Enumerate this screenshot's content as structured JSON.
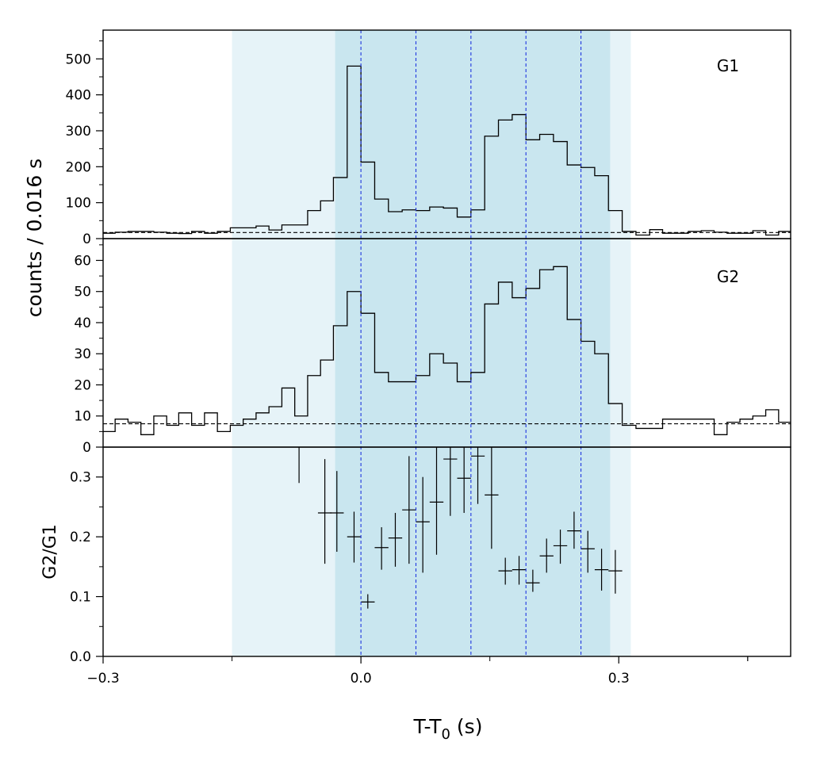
{
  "chart_data": {
    "type": "line",
    "shared_x": {
      "label_main": "T-T",
      "label_sub": "0",
      "label_tail": " (s)",
      "range": [
        -0.3,
        0.5
      ],
      "ticks": [
        -0.3,
        0.0,
        0.3
      ],
      "tick_labels": [
        "−0.3",
        "0.0",
        "0.3"
      ]
    },
    "shared_ylabel": "counts /  0.016 s",
    "background_bands": [
      {
        "x": [
          -0.15,
          0.314
        ],
        "color": "#e6f3f8"
      },
      {
        "x": [
          -0.03,
          0.29
        ],
        "color": "#c9e6ef"
      }
    ],
    "vlines": {
      "x": [
        0.0,
        0.064,
        0.128,
        0.192,
        0.256
      ],
      "color": "#1f36e0"
    },
    "panels": [
      {
        "name": "G1",
        "label": "G1",
        "ylim": [
          0,
          580
        ],
        "yticks": [
          0,
          100,
          200,
          300,
          400,
          500
        ],
        "ytick_labels": [
          "0",
          "100",
          "200",
          "300",
          "400",
          "500"
        ],
        "baseline": 17,
        "step_edges": [
          -0.3,
          -0.286,
          -0.271,
          -0.256,
          -0.241,
          -0.226,
          -0.212,
          -0.197,
          -0.182,
          -0.167,
          -0.152,
          -0.137,
          -0.122,
          -0.107,
          -0.092,
          -0.077,
          -0.062,
          -0.047,
          -0.032,
          -0.016,
          0.0,
          0.016,
          0.032,
          0.048,
          0.064,
          0.08,
          0.096,
          0.112,
          0.128,
          0.144,
          0.16,
          0.176,
          0.192,
          0.208,
          0.224,
          0.24,
          0.256,
          0.272,
          0.288,
          0.304,
          0.32,
          0.336,
          0.351,
          0.366,
          0.381,
          0.396,
          0.411,
          0.426,
          0.441,
          0.456,
          0.471,
          0.486,
          0.5
        ],
        "step_values": [
          15,
          18,
          20,
          20,
          18,
          15,
          14,
          20,
          15,
          20,
          30,
          30,
          35,
          24,
          38,
          38,
          78,
          105,
          170,
          480,
          213,
          110,
          75,
          80,
          78,
          88,
          85,
          60,
          80,
          285,
          330,
          345,
          275,
          290,
          270,
          205,
          198,
          175,
          78,
          20,
          10,
          25,
          15,
          15,
          20,
          22,
          18,
          15,
          15,
          22,
          10,
          20
        ]
      },
      {
        "name": "G2",
        "label": "G2",
        "ylim": [
          0,
          67
        ],
        "yticks": [
          0,
          10,
          20,
          30,
          40,
          50,
          60
        ],
        "ytick_labels": [
          "0",
          "10",
          "20",
          "30",
          "40",
          "50",
          "60"
        ],
        "baseline": 7.5,
        "step_edges": [
          -0.3,
          -0.286,
          -0.271,
          -0.256,
          -0.241,
          -0.226,
          -0.212,
          -0.197,
          -0.182,
          -0.167,
          -0.152,
          -0.137,
          -0.122,
          -0.107,
          -0.092,
          -0.077,
          -0.062,
          -0.047,
          -0.032,
          -0.016,
          0.0,
          0.016,
          0.032,
          0.048,
          0.064,
          0.08,
          0.096,
          0.112,
          0.128,
          0.144,
          0.16,
          0.176,
          0.192,
          0.208,
          0.224,
          0.24,
          0.256,
          0.272,
          0.288,
          0.304,
          0.32,
          0.336,
          0.351,
          0.366,
          0.381,
          0.396,
          0.411,
          0.426,
          0.441,
          0.456,
          0.471,
          0.486,
          0.5
        ],
        "step_values": [
          5,
          9,
          8,
          4,
          10,
          7,
          11,
          7,
          11,
          5,
          7,
          9,
          11,
          13,
          19,
          10,
          23,
          28,
          39,
          50,
          43,
          24,
          21,
          21,
          23,
          30,
          27,
          21,
          24,
          46,
          53,
          48,
          51,
          57,
          58,
          41,
          34,
          30,
          14,
          7,
          6,
          6,
          9,
          9,
          9,
          9,
          4,
          8,
          9,
          10,
          12,
          8
        ]
      },
      {
        "name": "G2/G1",
        "ylabel": "G2/G1",
        "ylim": [
          0,
          0.35
        ],
        "yticks": [
          0.0,
          0.1,
          0.2,
          0.3
        ],
        "ytick_labels": [
          "0.0",
          "0.1",
          "0.2",
          "0.3"
        ],
        "points": [
          {
            "x": -0.072,
            "y": 0.33,
            "ylo": 0.29,
            "yhi": 0.35,
            "xerr": 0.0
          },
          {
            "x": -0.042,
            "y": 0.24,
            "ylo": 0.155,
            "yhi": 0.33,
            "xerr": 0.008
          },
          {
            "x": -0.028,
            "y": 0.24,
            "ylo": 0.175,
            "yhi": 0.31,
            "xerr": 0.008
          },
          {
            "x": -0.008,
            "y": 0.2,
            "ylo": 0.157,
            "yhi": 0.242,
            "xerr": 0.008
          },
          {
            "x": 0.008,
            "y": 0.091,
            "ylo": 0.08,
            "yhi": 0.104,
            "xerr": 0.008
          },
          {
            "x": 0.024,
            "y": 0.182,
            "ylo": 0.145,
            "yhi": 0.216,
            "xerr": 0.008
          },
          {
            "x": 0.04,
            "y": 0.198,
            "ylo": 0.15,
            "yhi": 0.24,
            "xerr": 0.008
          },
          {
            "x": 0.056,
            "y": 0.245,
            "ylo": 0.155,
            "yhi": 0.335,
            "xerr": 0.008
          },
          {
            "x": 0.072,
            "y": 0.225,
            "ylo": 0.14,
            "yhi": 0.3,
            "xerr": 0.008
          },
          {
            "x": 0.088,
            "y": 0.258,
            "ylo": 0.17,
            "yhi": 0.35,
            "xerr": 0.008
          },
          {
            "x": 0.104,
            "y": 0.33,
            "ylo": 0.235,
            "yhi": 0.35,
            "xerr": 0.008
          },
          {
            "x": 0.12,
            "y": 0.298,
            "ylo": 0.24,
            "yhi": 0.35,
            "xerr": 0.008
          },
          {
            "x": 0.136,
            "y": 0.335,
            "ylo": 0.255,
            "yhi": 0.35,
            "xerr": 0.008
          },
          {
            "x": 0.152,
            "y": 0.27,
            "ylo": 0.18,
            "yhi": 0.35,
            "xerr": 0.008
          },
          {
            "x": 0.168,
            "y": 0.143,
            "ylo": 0.12,
            "yhi": 0.165,
            "xerr": 0.008
          },
          {
            "x": 0.184,
            "y": 0.145,
            "ylo": 0.12,
            "yhi": 0.168,
            "xerr": 0.008
          },
          {
            "x": 0.2,
            "y": 0.123,
            "ylo": 0.108,
            "yhi": 0.145,
            "xerr": 0.008
          },
          {
            "x": 0.216,
            "y": 0.168,
            "ylo": 0.14,
            "yhi": 0.197,
            "xerr": 0.008
          },
          {
            "x": 0.232,
            "y": 0.185,
            "ylo": 0.155,
            "yhi": 0.212,
            "xerr": 0.008
          },
          {
            "x": 0.248,
            "y": 0.21,
            "ylo": 0.18,
            "yhi": 0.242,
            "xerr": 0.008
          },
          {
            "x": 0.264,
            "y": 0.18,
            "ylo": 0.14,
            "yhi": 0.21,
            "xerr": 0.008
          },
          {
            "x": 0.28,
            "y": 0.145,
            "ylo": 0.11,
            "yhi": 0.18,
            "xerr": 0.008
          },
          {
            "x": 0.296,
            "y": 0.143,
            "ylo": 0.105,
            "yhi": 0.178,
            "xerr": 0.008
          }
        ]
      }
    ]
  }
}
